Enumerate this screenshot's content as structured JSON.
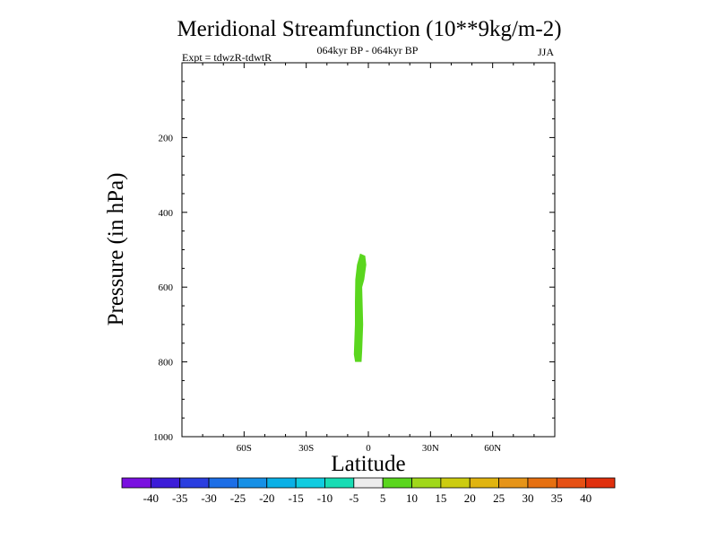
{
  "chart_data": {
    "type": "contour",
    "title": "Meridional Streamfunction (10**9kg/m-2)",
    "subtitle_left": "Expt = tdwzR-tdwtR",
    "subtitle_center": "064kyr BP - 064kyr BP",
    "subtitle_right": "JJA",
    "xlabel": "Latitude",
    "ylabel": "Pressure (in hPa)",
    "xlim": [
      -90,
      90
    ],
    "ylim": [
      0,
      1000
    ],
    "y_reversed": true,
    "x_ticks": [
      {
        "value": -60,
        "label": "60S"
      },
      {
        "value": -30,
        "label": "30S"
      },
      {
        "value": 0,
        "label": "0"
      },
      {
        "value": 30,
        "label": "30N"
      },
      {
        "value": 60,
        "label": "60N"
      }
    ],
    "y_ticks": [
      {
        "value": 200,
        "label": "200"
      },
      {
        "value": 400,
        "label": "400"
      },
      {
        "value": 600,
        "label": "600"
      },
      {
        "value": 800,
        "label": "800"
      },
      {
        "value": 1000,
        "label": "1000"
      }
    ],
    "filled_regions": [
      {
        "level_range": [
          5,
          10
        ],
        "color": "#5ad61e",
        "outline": [
          [
            -4,
            510
          ],
          [
            -1.5,
            516
          ],
          [
            -1,
            540
          ],
          [
            -2,
            580
          ],
          [
            -3,
            600
          ],
          [
            -2.5,
            700
          ],
          [
            -3,
            770
          ],
          [
            -3.3,
            800
          ],
          [
            -6.4,
            800
          ],
          [
            -7,
            780
          ],
          [
            -6.5,
            700
          ],
          [
            -6.5,
            640
          ],
          [
            -6.3,
            580
          ],
          [
            -5.5,
            540
          ]
        ]
      }
    ],
    "colorbar": {
      "levels": [
        "-40",
        "-35",
        "-30",
        "-25",
        "-20",
        "-15",
        "-10",
        "-5",
        "5",
        "10",
        "15",
        "20",
        "25",
        "30",
        "35",
        "40"
      ],
      "colors": [
        "#7a10e0",
        "#3c1cd8",
        "#2a3ee0",
        "#1c6ee6",
        "#1690e6",
        "#0ab0e6",
        "#10cce0",
        "#18dcb4",
        "#ececec",
        "#5ad61e",
        "#a0d81a",
        "#cccc10",
        "#e0b410",
        "#e69418",
        "#e67010",
        "#e65014",
        "#e0300e"
      ]
    }
  }
}
